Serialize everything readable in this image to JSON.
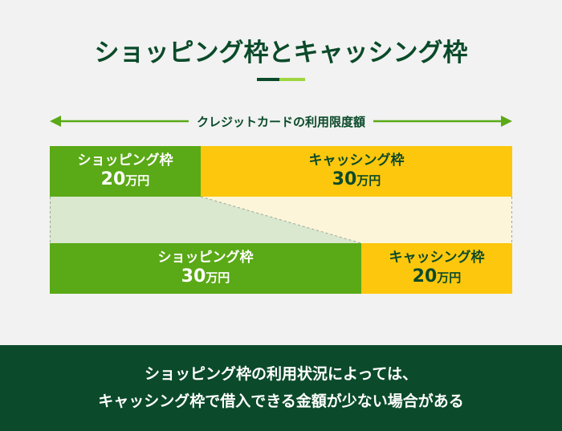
{
  "title": "ショッピング枠とキャッシング枠",
  "limit_label": "クレジットカードの利用限度額",
  "rows": [
    [
      {
        "name": "ショッピング枠",
        "amount": "20",
        "unit": "万円"
      },
      {
        "name": "キャッシング枠",
        "amount": "30",
        "unit": "万円"
      }
    ],
    [
      {
        "name": "ショッピング枠",
        "amount": "30",
        "unit": "万円"
      },
      {
        "name": "キャッシング枠",
        "amount": "20",
        "unit": "万円"
      }
    ]
  ],
  "footer": [
    "ショッピング枠の利用状況によっては、",
    "キャッシング枠で借入できる金額が少ない場合がある"
  ]
}
